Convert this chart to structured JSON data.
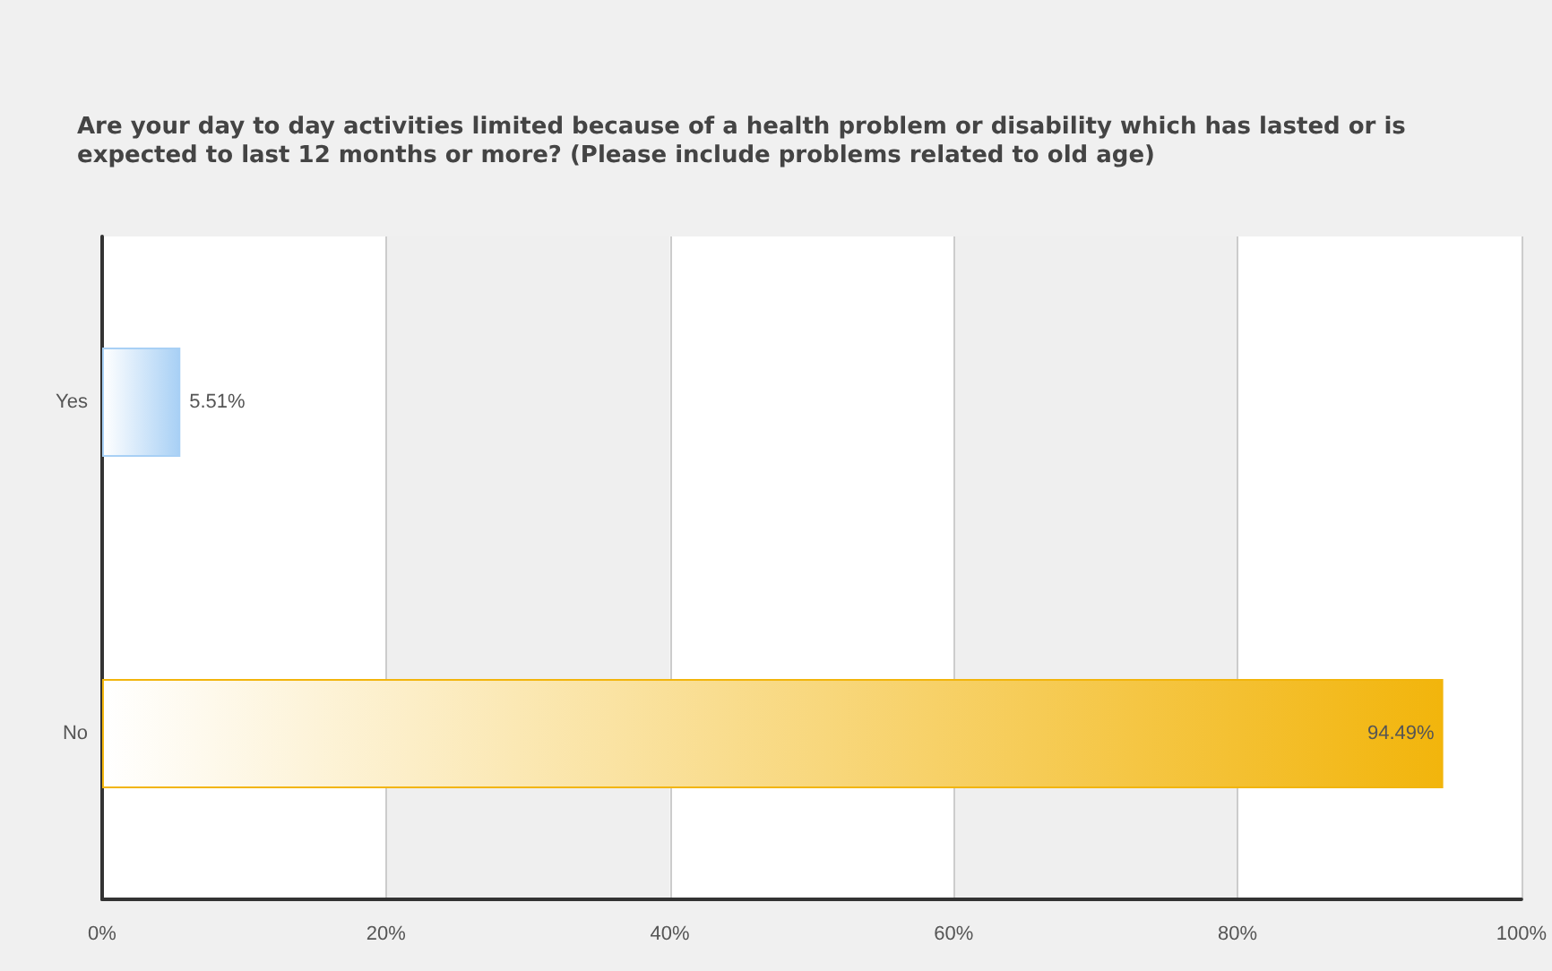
{
  "chart_data": {
    "type": "bar",
    "orientation": "horizontal",
    "title": "Are your day to day activities limited because of a health problem or disability which has lasted or is expected to last 12 months or more? (Please include problems related to old age)",
    "categories": [
      "Yes",
      "No"
    ],
    "values": [
      5.51,
      94.49
    ],
    "colors": [
      "#a8d0f5",
      "#f2b50c"
    ],
    "value_labels": [
      "5.51%",
      "94.49%"
    ],
    "xlim": [
      0,
      100
    ],
    "xticks": [
      {
        "value": 0,
        "label": "0%"
      },
      {
        "value": 20,
        "label": "20%"
      },
      {
        "value": 40,
        "label": "40%"
      },
      {
        "value": 60,
        "label": "60%"
      },
      {
        "value": 80,
        "label": "80%"
      },
      {
        "value": 100,
        "label": "100%"
      }
    ],
    "grid": "x"
  }
}
